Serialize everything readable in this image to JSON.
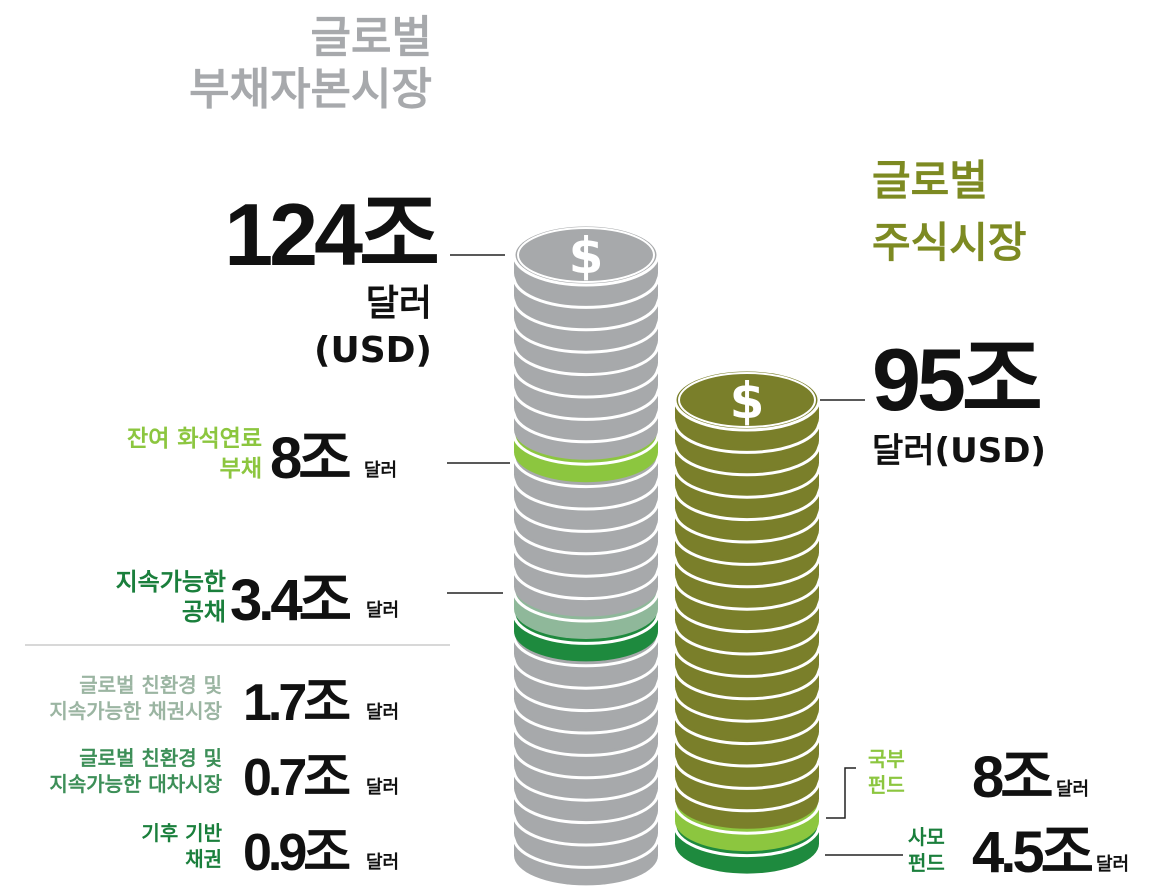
{
  "debt_market": {
    "title": [
      "글로벌",
      "부채자본시장"
    ],
    "amount": "124조",
    "unit": "달러",
    "currency": "(USD)",
    "items": [
      {
        "label": [
          "잔여 화석연료",
          "부채"
        ],
        "amount": "8조",
        "unit": "달러"
      },
      {
        "label": [
          "지속가능한",
          "공채"
        ],
        "amount": "3.4조",
        "unit": "달러"
      },
      {
        "label": [
          "글로벌 친환경 및",
          "지속가능한 채권시장"
        ],
        "amount": "1.7조",
        "unit": "달러"
      },
      {
        "label": [
          "글로벌 친환경 및",
          "지속가능한 대차시장"
        ],
        "amount": "0.7조",
        "unit": "달러"
      },
      {
        "label": [
          "기후 기반",
          "채권"
        ],
        "amount": "0.9조",
        "unit": "달러"
      }
    ]
  },
  "equity_market": {
    "title": [
      "글로벌",
      "주식시장"
    ],
    "amount": "95조",
    "unit": "달러(USD)",
    "items": [
      {
        "label": [
          "국부",
          "펀드"
        ],
        "amount": "8조",
        "unit": "달러"
      },
      {
        "label": [
          "사모",
          "펀드"
        ],
        "amount": "4.5조",
        "unit": "달러"
      }
    ]
  },
  "coin_symbol": "$"
}
